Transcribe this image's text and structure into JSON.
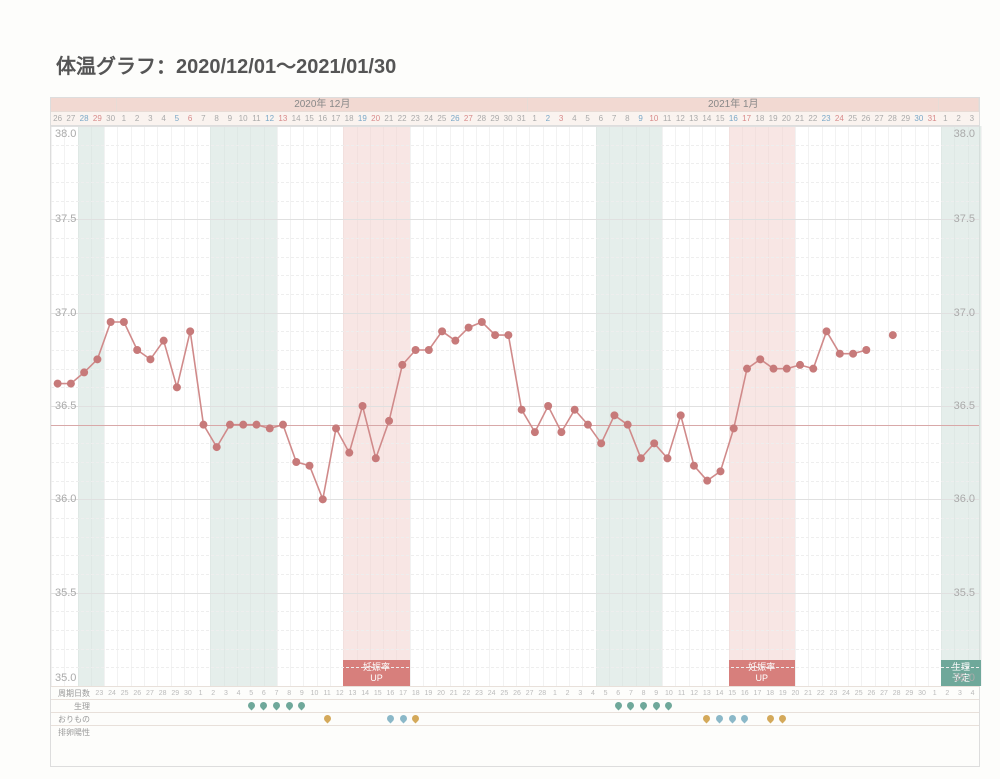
{
  "title": "体温グラフ：2020/12/01～2021/01/30",
  "chart": {
    "type": "line",
    "ylim": [
      35.0,
      38.0
    ],
    "yticks": [
      35.0,
      35.5,
      36.0,
      36.5,
      37.0,
      37.5,
      38.0
    ],
    "ytick_labels": [
      "35.0",
      "35.5",
      "36.0",
      "36.5",
      "37.0",
      "37.5",
      "38.0"
    ],
    "label_fontsize": 11,
    "background_color": "#ffffff",
    "grid_color_minor": "#f4f4f4",
    "grid_color_major": "#e0e0e0",
    "line_color": "#d08a8a",
    "marker_color": "#c77a7a",
    "marker_size": 4,
    "line_width": 1.6,
    "baseline_y": 36.4,
    "baseline_color": "#d8a8a8",
    "month_header_bg": "#f2d9d2",
    "date_row_bg": "#faf3ef",
    "weekend_sat_color": "#7aa8c8",
    "weekend_sun_color": "#d88a8a",
    "months": [
      {
        "label": "",
        "start": 0,
        "span": 5,
        "bg": "#f2d9d2"
      },
      {
        "label": "2020年 12月",
        "start": 5,
        "span": 31,
        "bg": "#f2d9d2"
      },
      {
        "label": "2021年 1月",
        "start": 36,
        "span": 31,
        "bg": "#f2d9d2"
      },
      {
        "label": "",
        "start": 67,
        "span": 3,
        "bg": "#f2d9d2"
      }
    ],
    "dates": [
      "26",
      "27",
      "28",
      "29",
      "30",
      "1",
      "2",
      "3",
      "4",
      "5",
      "6",
      "7",
      "8",
      "9",
      "10",
      "11",
      "12",
      "13",
      "14",
      "15",
      "16",
      "17",
      "18",
      "19",
      "20",
      "21",
      "22",
      "23",
      "24",
      "25",
      "26",
      "27",
      "28",
      "29",
      "30",
      "31",
      "1",
      "2",
      "3",
      "4",
      "5",
      "6",
      "7",
      "8",
      "9",
      "10",
      "11",
      "12",
      "13",
      "14",
      "15",
      "16",
      "17",
      "18",
      "19",
      "20",
      "21",
      "22",
      "23",
      "24",
      "25",
      "26",
      "27",
      "28",
      "29",
      "30",
      "31",
      "1",
      "2",
      "3"
    ],
    "date_colors": [
      "#aaa",
      "#aaa",
      "#7aa8c8",
      "#d88a8a",
      "#aaa",
      "#aaa",
      "#aaa",
      "#aaa",
      "#aaa",
      "#7aa8c8",
      "#d88a8a",
      "#aaa",
      "#aaa",
      "#aaa",
      "#aaa",
      "#aaa",
      "#7aa8c8",
      "#d88a8a",
      "#aaa",
      "#aaa",
      "#aaa",
      "#aaa",
      "#aaa",
      "#7aa8c8",
      "#d88a8a",
      "#aaa",
      "#aaa",
      "#aaa",
      "#aaa",
      "#aaa",
      "#7aa8c8",
      "#d88a8a",
      "#aaa",
      "#aaa",
      "#aaa",
      "#aaa",
      "#aaa",
      "#7aa8c8",
      "#d88a8a",
      "#aaa",
      "#aaa",
      "#aaa",
      "#aaa",
      "#aaa",
      "#7aa8c8",
      "#d88a8a",
      "#aaa",
      "#aaa",
      "#aaa",
      "#aaa",
      "#aaa",
      "#7aa8c8",
      "#d88a8a",
      "#aaa",
      "#aaa",
      "#aaa",
      "#aaa",
      "#aaa",
      "#7aa8c8",
      "#d88a8a",
      "#aaa",
      "#aaa",
      "#aaa",
      "#aaa",
      "#aaa",
      "#7aa8c8",
      "#d88a8a",
      "#aaa",
      "#aaa",
      "#aaa"
    ],
    "bands": [
      {
        "start": 2,
        "span": 2,
        "color": "#cfe0da"
      },
      {
        "start": 12,
        "span": 5,
        "color": "#cfe0da"
      },
      {
        "start": 22,
        "span": 5,
        "color": "#f2d1ce",
        "label_top": "妊娠率",
        "label_bottom": "UP",
        "label_bg": "#d77f7c"
      },
      {
        "start": 41,
        "span": 5,
        "color": "#cfe0da"
      },
      {
        "start": 51,
        "span": 5,
        "color": "#f2d1ce",
        "label_top": "妊娠率",
        "label_bottom": "UP",
        "label_bg": "#d77f7c"
      },
      {
        "start": 67,
        "span": 3,
        "color": "#cfe0da",
        "label_top": "生理",
        "label_bottom": "予定",
        "label_bg": "#6fa89a"
      }
    ],
    "values": [
      36.62,
      36.62,
      36.68,
      36.75,
      36.95,
      36.95,
      36.8,
      36.75,
      36.85,
      36.6,
      36.9,
      36.4,
      36.28,
      36.4,
      36.4,
      36.4,
      36.38,
      36.4,
      36.2,
      36.18,
      36.0,
      36.38,
      36.25,
      36.5,
      36.22,
      36.42,
      36.72,
      36.8,
      36.8,
      36.9,
      36.85,
      36.92,
      36.95,
      36.88,
      36.88,
      36.48,
      36.36,
      36.5,
      36.36,
      36.48,
      36.4,
      36.3,
      36.45,
      36.4,
      36.22,
      36.3,
      36.22,
      36.45,
      36.18,
      36.1,
      36.15,
      36.38,
      36.7,
      36.75,
      36.7,
      36.7,
      36.72,
      36.7,
      36.9,
      36.78,
      36.78,
      36.8,
      null,
      36.88,
      null,
      null,
      null,
      null,
      null,
      null
    ]
  },
  "footer": {
    "rows": [
      {
        "label": "周期日数",
        "values": [
          "23",
          "24",
          "25",
          "26",
          "27",
          "28",
          "29",
          "30",
          "1",
          "2",
          "3",
          "4",
          "5",
          "6",
          "7",
          "8",
          "9",
          "10",
          "11",
          "12",
          "13",
          "14",
          "15",
          "16",
          "17",
          "18",
          "19",
          "20",
          "21",
          "22",
          "23",
          "24",
          "25",
          "26",
          "27",
          "28",
          "1",
          "2",
          "3",
          "4",
          "5",
          "6",
          "7",
          "8",
          "9",
          "10",
          "11",
          "12",
          "13",
          "14",
          "15",
          "16",
          "17",
          "18",
          "19",
          "20",
          "21",
          "22",
          "23",
          "24",
          "25",
          "26",
          "27",
          "28",
          "29",
          "30",
          "1",
          "2",
          "3",
          "4"
        ]
      },
      {
        "label": "生理",
        "markers": [
          {
            "idx": 12,
            "color": "#6fa89a"
          },
          {
            "idx": 13,
            "color": "#6fa89a"
          },
          {
            "idx": 14,
            "color": "#6fa89a"
          },
          {
            "idx": 15,
            "color": "#6fa89a"
          },
          {
            "idx": 16,
            "color": "#6fa89a"
          },
          {
            "idx": 41,
            "color": "#6fa89a"
          },
          {
            "idx": 42,
            "color": "#6fa89a"
          },
          {
            "idx": 43,
            "color": "#6fa89a"
          },
          {
            "idx": 44,
            "color": "#6fa89a"
          },
          {
            "idx": 45,
            "color": "#6fa89a"
          }
        ]
      },
      {
        "label": "おりもの",
        "markers": [
          {
            "idx": 18,
            "color": "#d4a95a"
          },
          {
            "idx": 23,
            "color": "#8bb8c8"
          },
          {
            "idx": 24,
            "color": "#8bb8c8"
          },
          {
            "idx": 25,
            "color": "#d4a95a"
          },
          {
            "idx": 48,
            "color": "#d4a95a"
          },
          {
            "idx": 49,
            "color": "#8bb8c8"
          },
          {
            "idx": 50,
            "color": "#8bb8c8"
          },
          {
            "idx": 51,
            "color": "#8bb8c8"
          },
          {
            "idx": 53,
            "color": "#d4a95a"
          },
          {
            "idx": 54,
            "color": "#d4a95a"
          }
        ]
      },
      {
        "label": "排卵陽性",
        "markers": []
      }
    ]
  }
}
